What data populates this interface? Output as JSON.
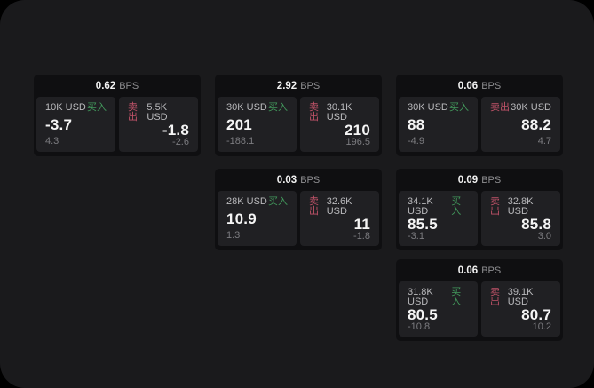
{
  "labels": {
    "bps_unit": "BPS",
    "buy": "买入",
    "sell": "卖出"
  },
  "colors": {
    "buy": "#42995c",
    "sell": "#bf5268",
    "page_bg": "#1a1a1c",
    "card_bg": "#0f0f11",
    "panel_bg": "#202023"
  },
  "cards": [
    {
      "bps": "0.62",
      "buy": {
        "amount": "10K USD",
        "price": "-3.7",
        "sub": "4.3"
      },
      "sell": {
        "amount": "5.5K USD",
        "price": "-1.8",
        "sub": "-2.6"
      }
    },
    {
      "bps": "2.92",
      "buy": {
        "amount": "30K USD",
        "price": "201",
        "sub": "-188.1"
      },
      "sell": {
        "amount": "30.1K USD",
        "price": "210",
        "sub": "196.5"
      }
    },
    {
      "bps": "0.06",
      "buy": {
        "amount": "30K USD",
        "price": "88",
        "sub": "-4.9"
      },
      "sell": {
        "amount": "30K USD",
        "price": "88.2",
        "sub": "4.7"
      }
    },
    {
      "bps": "0.03",
      "buy": {
        "amount": "28K USD",
        "price": "10.9",
        "sub": "1.3"
      },
      "sell": {
        "amount": "32.6K USD",
        "price": "11",
        "sub": "-1.8"
      }
    },
    {
      "bps": "0.09",
      "buy": {
        "amount": "34.1K USD",
        "price": "85.5",
        "sub": "-3.1"
      },
      "sell": {
        "amount": "32.8K USD",
        "price": "85.8",
        "sub": "3.0"
      }
    },
    {
      "bps": "0.06",
      "buy": {
        "amount": "31.8K USD",
        "price": "80.5",
        "sub": "-10.8"
      },
      "sell": {
        "amount": "39.1K USD",
        "price": "80.7",
        "sub": "10.2"
      }
    }
  ]
}
